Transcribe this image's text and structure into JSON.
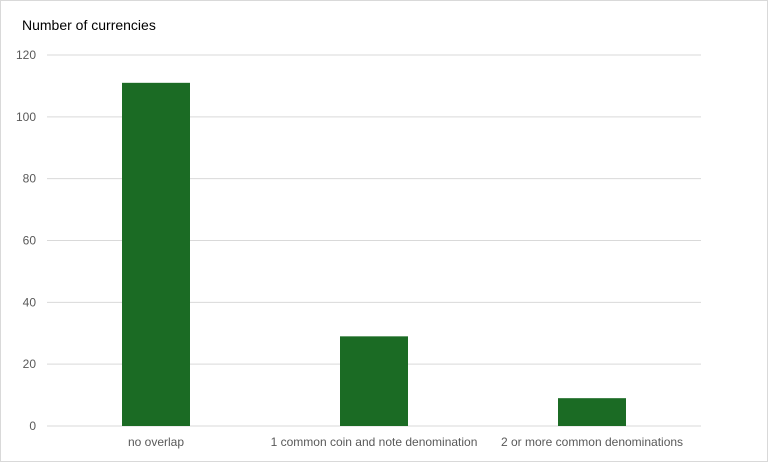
{
  "chart_data": {
    "type": "bar",
    "title": "",
    "ylabel": "Number of currencies",
    "xlabel": "",
    "categories": [
      "no overlap",
      "1 common coin and note denomination",
      "2 or more common denominations"
    ],
    "values": [
      111,
      29,
      9
    ],
    "ylim": [
      0,
      120
    ],
    "yticks": [
      0,
      20,
      40,
      60,
      80,
      100,
      120
    ],
    "grid": true,
    "legend": "none",
    "bar_color": "#1b6b24"
  }
}
